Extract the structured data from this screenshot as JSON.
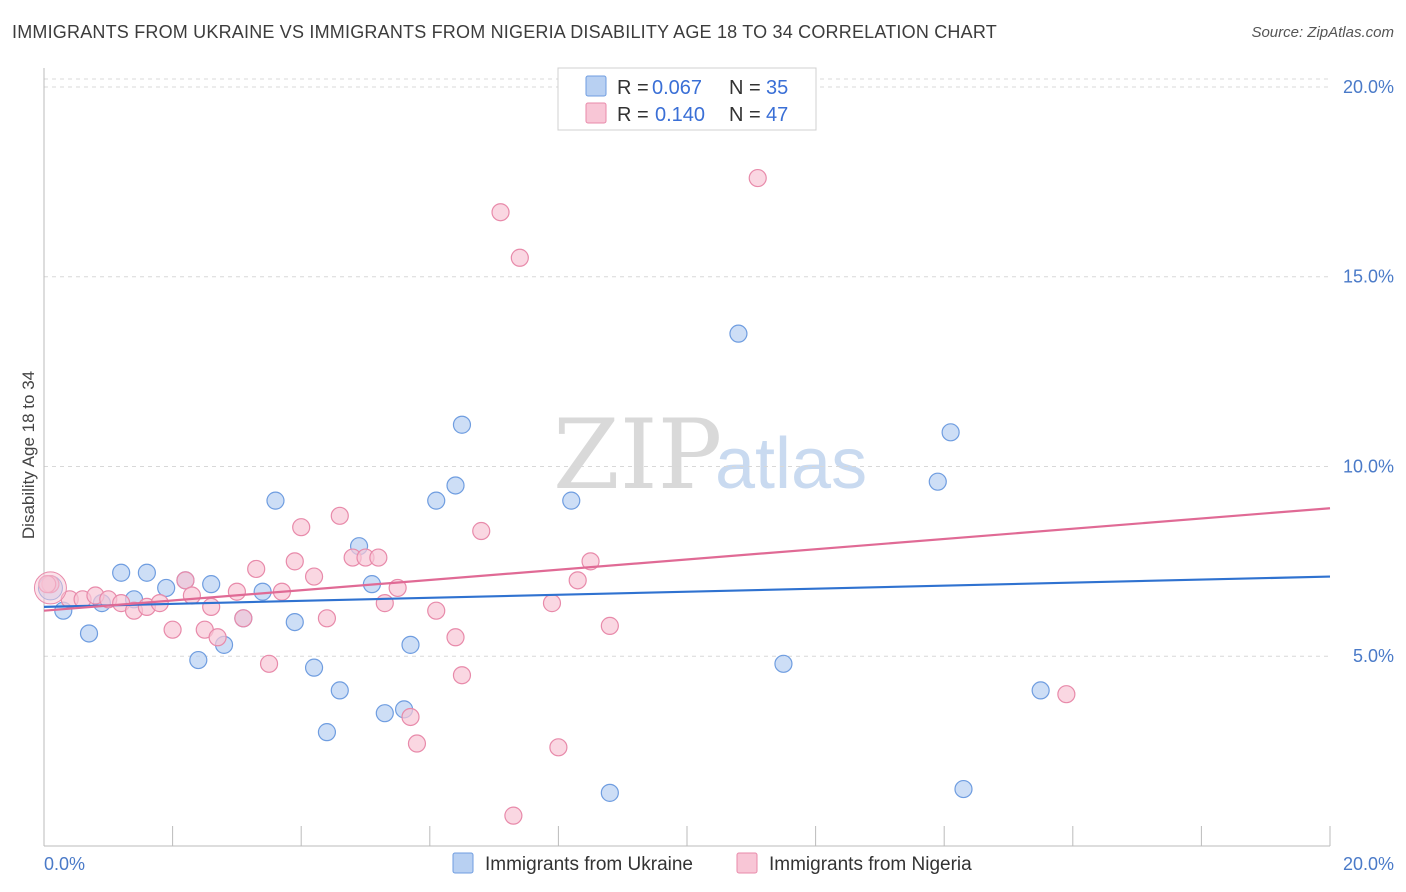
{
  "header": {
    "title": "IMMIGRANTS FROM UKRAINE VS IMMIGRANTS FROM NIGERIA DISABILITY AGE 18 TO 34 CORRELATION CHART",
    "source": "Source: ZipAtlas.com"
  },
  "watermark": {
    "zip": "ZIP",
    "atlas": "atlas"
  },
  "legend_stats": {
    "ukraine": {
      "r_label": "R =",
      "r_value": "0.067",
      "n_label": "N =",
      "n_value": "35"
    },
    "nigeria": {
      "r_label": "R =",
      "r_value": "0.140",
      "n_label": "N =",
      "n_value": "47"
    }
  },
  "bottom_legend": {
    "ukraine": "Immigrants from Ukraine",
    "nigeria": "Immigrants from Nigeria"
  },
  "colors": {
    "ukraine_fill": "#b8d0f2",
    "ukraine_stroke": "#6f9de0",
    "ukraine_line": "#2f72d0",
    "nigeria_fill": "#f8c6d6",
    "nigeria_stroke": "#e88aaa",
    "nigeria_line": "#e06a95",
    "grid": "#d8d8d8",
    "tick_label": "#4a7ac8"
  },
  "chart_data": {
    "type": "scatter",
    "title": "IMMIGRANTS FROM UKRAINE VS IMMIGRANTS FROM NIGERIA DISABILITY AGE 18 TO 34 CORRELATION CHART",
    "xlabel": "",
    "ylabel": "Disability Age 18 to 34",
    "xlim": [
      0,
      20
    ],
    "ylim": [
      0,
      20.5
    ],
    "x_tick_labels": [
      "0.0%",
      "20.0%"
    ],
    "y_ticks": [
      5,
      10,
      15,
      20
    ],
    "y_tick_labels": [
      "5.0%",
      "10.0%",
      "15.0%",
      "20.0%"
    ],
    "grid": true,
    "legend_position": "top-center",
    "series": [
      {
        "name": "Immigrants from Ukraine",
        "R": 0.067,
        "N": 35,
        "trend": {
          "x": [
            0,
            20
          ],
          "y": [
            6.3,
            7.1
          ]
        },
        "points": [
          [
            0.1,
            6.9
          ],
          [
            0.3,
            6.2
          ],
          [
            0.7,
            5.6
          ],
          [
            0.9,
            6.4
          ],
          [
            1.2,
            7.2
          ],
          [
            1.4,
            6.5
          ],
          [
            1.6,
            7.2
          ],
          [
            1.9,
            6.8
          ],
          [
            2.2,
            7.0
          ],
          [
            2.4,
            4.9
          ],
          [
            2.6,
            6.9
          ],
          [
            2.8,
            5.3
          ],
          [
            3.1,
            6.0
          ],
          [
            3.4,
            6.7
          ],
          [
            3.6,
            9.1
          ],
          [
            3.9,
            5.9
          ],
          [
            4.2,
            4.7
          ],
          [
            4.4,
            3.0
          ],
          [
            4.6,
            4.1
          ],
          [
            4.9,
            7.9
          ],
          [
            5.1,
            6.9
          ],
          [
            5.3,
            3.5
          ],
          [
            5.6,
            3.6
          ],
          [
            5.7,
            5.3
          ],
          [
            6.1,
            9.1
          ],
          [
            6.4,
            9.5
          ],
          [
            6.5,
            11.1
          ],
          [
            8.2,
            9.1
          ],
          [
            8.8,
            1.4
          ],
          [
            10.8,
            13.5
          ],
          [
            11.5,
            4.8
          ],
          [
            13.9,
            9.6
          ],
          [
            14.1,
            10.9
          ],
          [
            14.3,
            1.5
          ],
          [
            15.5,
            4.1
          ]
        ]
      },
      {
        "name": "Immigrants from Nigeria",
        "R": 0.14,
        "N": 47,
        "trend": {
          "x": [
            0,
            20
          ],
          "y": [
            6.2,
            8.9
          ]
        },
        "points": [
          [
            0.1,
            6.9
          ],
          [
            0.4,
            6.5
          ],
          [
            0.6,
            6.5
          ],
          [
            0.8,
            6.6
          ],
          [
            1.0,
            6.5
          ],
          [
            1.2,
            6.4
          ],
          [
            1.4,
            6.2
          ],
          [
            1.6,
            6.3
          ],
          [
            1.8,
            6.4
          ],
          [
            2.0,
            5.7
          ],
          [
            2.2,
            7.0
          ],
          [
            2.3,
            6.6
          ],
          [
            2.5,
            5.7
          ],
          [
            2.6,
            6.3
          ],
          [
            2.7,
            5.5
          ],
          [
            3.0,
            6.7
          ],
          [
            3.1,
            6.0
          ],
          [
            3.3,
            7.3
          ],
          [
            3.5,
            4.8
          ],
          [
            3.7,
            6.7
          ],
          [
            3.9,
            7.5
          ],
          [
            4.0,
            8.4
          ],
          [
            4.2,
            7.1
          ],
          [
            4.4,
            6.0
          ],
          [
            4.6,
            8.7
          ],
          [
            4.8,
            7.6
          ],
          [
            5.0,
            7.6
          ],
          [
            5.2,
            7.6
          ],
          [
            5.3,
            6.4
          ],
          [
            5.5,
            6.8
          ],
          [
            5.7,
            3.4
          ],
          [
            5.8,
            2.7
          ],
          [
            6.1,
            6.2
          ],
          [
            6.4,
            5.5
          ],
          [
            6.5,
            4.5
          ],
          [
            6.8,
            8.3
          ],
          [
            7.1,
            16.7
          ],
          [
            7.3,
            0.8
          ],
          [
            7.4,
            15.5
          ],
          [
            7.9,
            6.4
          ],
          [
            8.0,
            2.6
          ],
          [
            8.3,
            7.0
          ],
          [
            8.5,
            7.5
          ],
          [
            8.8,
            5.8
          ],
          [
            11.1,
            17.6
          ],
          [
            15.9,
            4.0
          ],
          [
            0.05,
            6.9
          ]
        ]
      }
    ]
  }
}
